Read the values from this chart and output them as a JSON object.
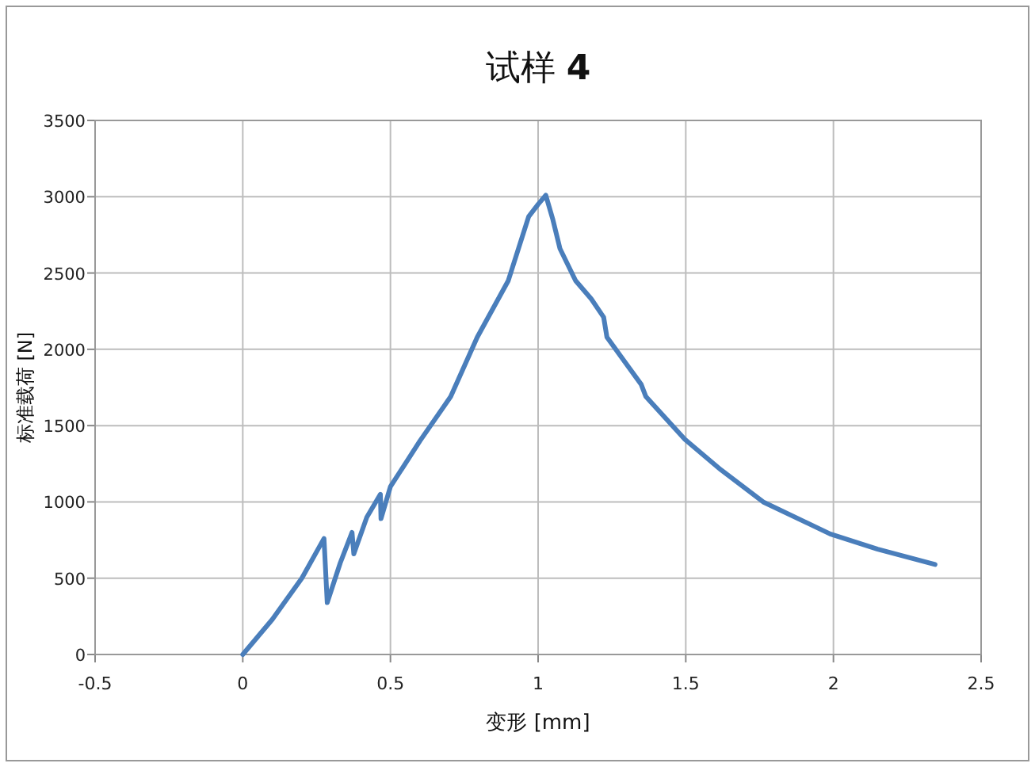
{
  "chart_data": {
    "type": "line",
    "title": "试样 **4**",
    "xlabel": "变形 [mm]",
    "ylabel": "标准载荷 [N]",
    "xlim": [
      -0.5,
      2.5
    ],
    "xticks": [
      -0.5,
      0,
      0.5,
      1,
      1.5,
      2,
      2.5
    ],
    "ylim": [
      0,
      3500
    ],
    "yticks": [
      0,
      500,
      1000,
      1500,
      2000,
      2500,
      3000,
      3500
    ],
    "grid": true,
    "marker": "none",
    "line_style": "solid",
    "series": [
      {
        "color": "#4a7ebb",
        "x": [
          0,
          0.1,
          0.2,
          0.275,
          0.286,
          0.33,
          0.37,
          0.376,
          0.42,
          0.466,
          0.468,
          0.5,
          0.55,
          0.6,
          0.704,
          0.794,
          0.899,
          0.968,
          1.0,
          1.026,
          1.05,
          1.074,
          1.127,
          1.18,
          1.222,
          1.233,
          1.3,
          1.349,
          1.365,
          1.497,
          1.619,
          1.762,
          1.989,
          2.15,
          2.344
        ],
        "values": [
          0,
          230,
          500,
          760,
          340,
          600,
          800,
          660,
          900,
          1050,
          890,
          1100,
          1250,
          1400,
          1690,
          2080,
          2450,
          2870,
          2950,
          3010,
          2850,
          2660,
          2450,
          2330,
          2210,
          2080,
          1900,
          1770,
          1690,
          1410,
          1210,
          1000,
          790,
          690,
          590
        ]
      }
    ]
  }
}
